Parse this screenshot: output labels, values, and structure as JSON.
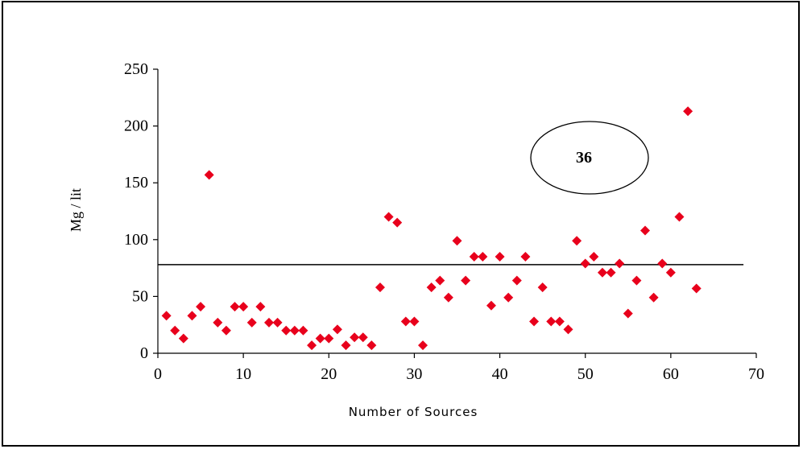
{
  "chart_data": {
    "type": "scatter",
    "title": "",
    "xlabel": "Number of Sources",
    "ylabel": "Mg / lit",
    "xlim": [
      0,
      70
    ],
    "ylim": [
      0,
      250
    ],
    "xticks": [
      0,
      10,
      20,
      30,
      40,
      50,
      60,
      70
    ],
    "yticks": [
      0,
      50,
      100,
      150,
      200,
      250
    ],
    "grid": false,
    "marker_color": "#e8001c",
    "marker": "diamond",
    "reference_line": {
      "y": 78,
      "x_start": 0,
      "x_end": 68.5,
      "color": "#000000"
    },
    "annotation": "36",
    "x": [
      1,
      2,
      3,
      4,
      5,
      6,
      7,
      8,
      9,
      10,
      11,
      12,
      13,
      14,
      15,
      16,
      17,
      18,
      19,
      20,
      21,
      22,
      23,
      24,
      25,
      26,
      27,
      28,
      29,
      30,
      31,
      32,
      33,
      34,
      35,
      36,
      37,
      38,
      39,
      40,
      41,
      42,
      43,
      44,
      45,
      46,
      47,
      48,
      49,
      50,
      51,
      52,
      53,
      54,
      55,
      56,
      57,
      58,
      59,
      60,
      61,
      62,
      63
    ],
    "y": [
      33,
      20,
      13,
      33,
      41,
      157,
      27,
      20,
      41,
      41,
      27,
      41,
      27,
      27,
      20,
      20,
      20,
      7,
      13,
      13,
      21,
      7,
      14,
      14,
      7,
      58,
      120,
      115,
      28,
      28,
      7,
      58,
      64,
      49,
      99,
      64,
      85,
      85,
      42,
      85,
      49,
      64,
      85,
      28,
      58,
      28,
      28,
      21,
      99,
      79,
      85,
      71,
      71,
      79,
      35,
      64,
      108,
      49,
      79,
      71,
      120,
      213,
      57
    ]
  }
}
